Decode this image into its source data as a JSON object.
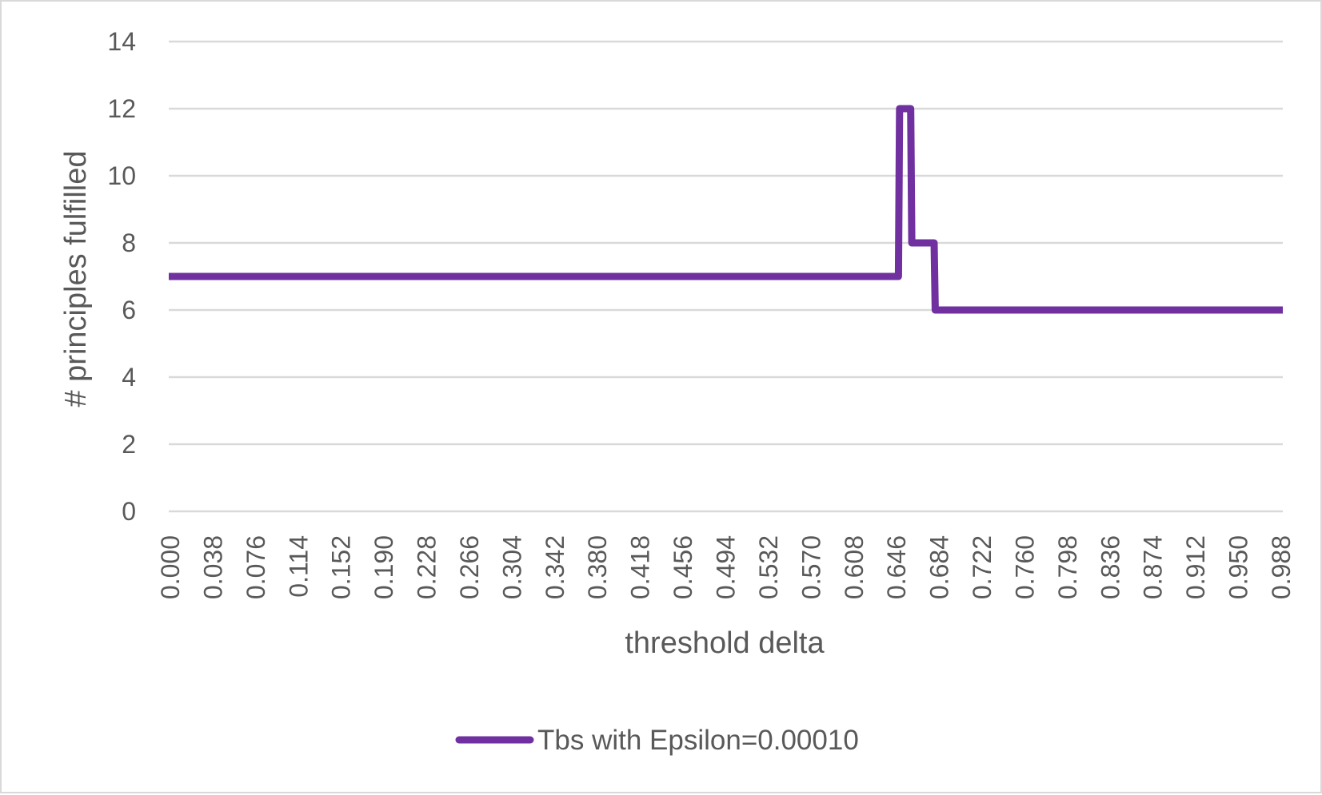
{
  "chart_data": {
    "type": "line",
    "title": "",
    "xlabel": "threshold delta",
    "ylabel": "# principles fulfilled",
    "xlim": [
      0,
      1
    ],
    "ylim": [
      0,
      14
    ],
    "y_ticks": [
      0,
      2,
      4,
      6,
      8,
      10,
      12,
      14
    ],
    "x_tick_labels": [
      "0.000",
      "0.038",
      "0.076",
      "0.114",
      "0.152",
      "0.190",
      "0.228",
      "0.266",
      "0.304",
      "0.342",
      "0.380",
      "0.418",
      "0.456",
      "0.494",
      "0.532",
      "0.570",
      "0.608",
      "0.646",
      "0.684",
      "0.722",
      "0.760",
      "0.798",
      "0.836",
      "0.874",
      "0.912",
      "0.950",
      "0.988"
    ],
    "grid": true,
    "legend_position": "bottom",
    "series": [
      {
        "name": "Tbs with Epsilon=0.00010",
        "color": "#7030a0",
        "x": [
          0.0,
          0.655,
          0.656,
          0.661,
          0.662,
          0.666,
          0.667,
          0.683,
          0.684,
          0.687,
          0.688,
          1.0
        ],
        "values": [
          7,
          7,
          12,
          12,
          12,
          12,
          8,
          8,
          8,
          8,
          6,
          6
        ]
      }
    ]
  }
}
